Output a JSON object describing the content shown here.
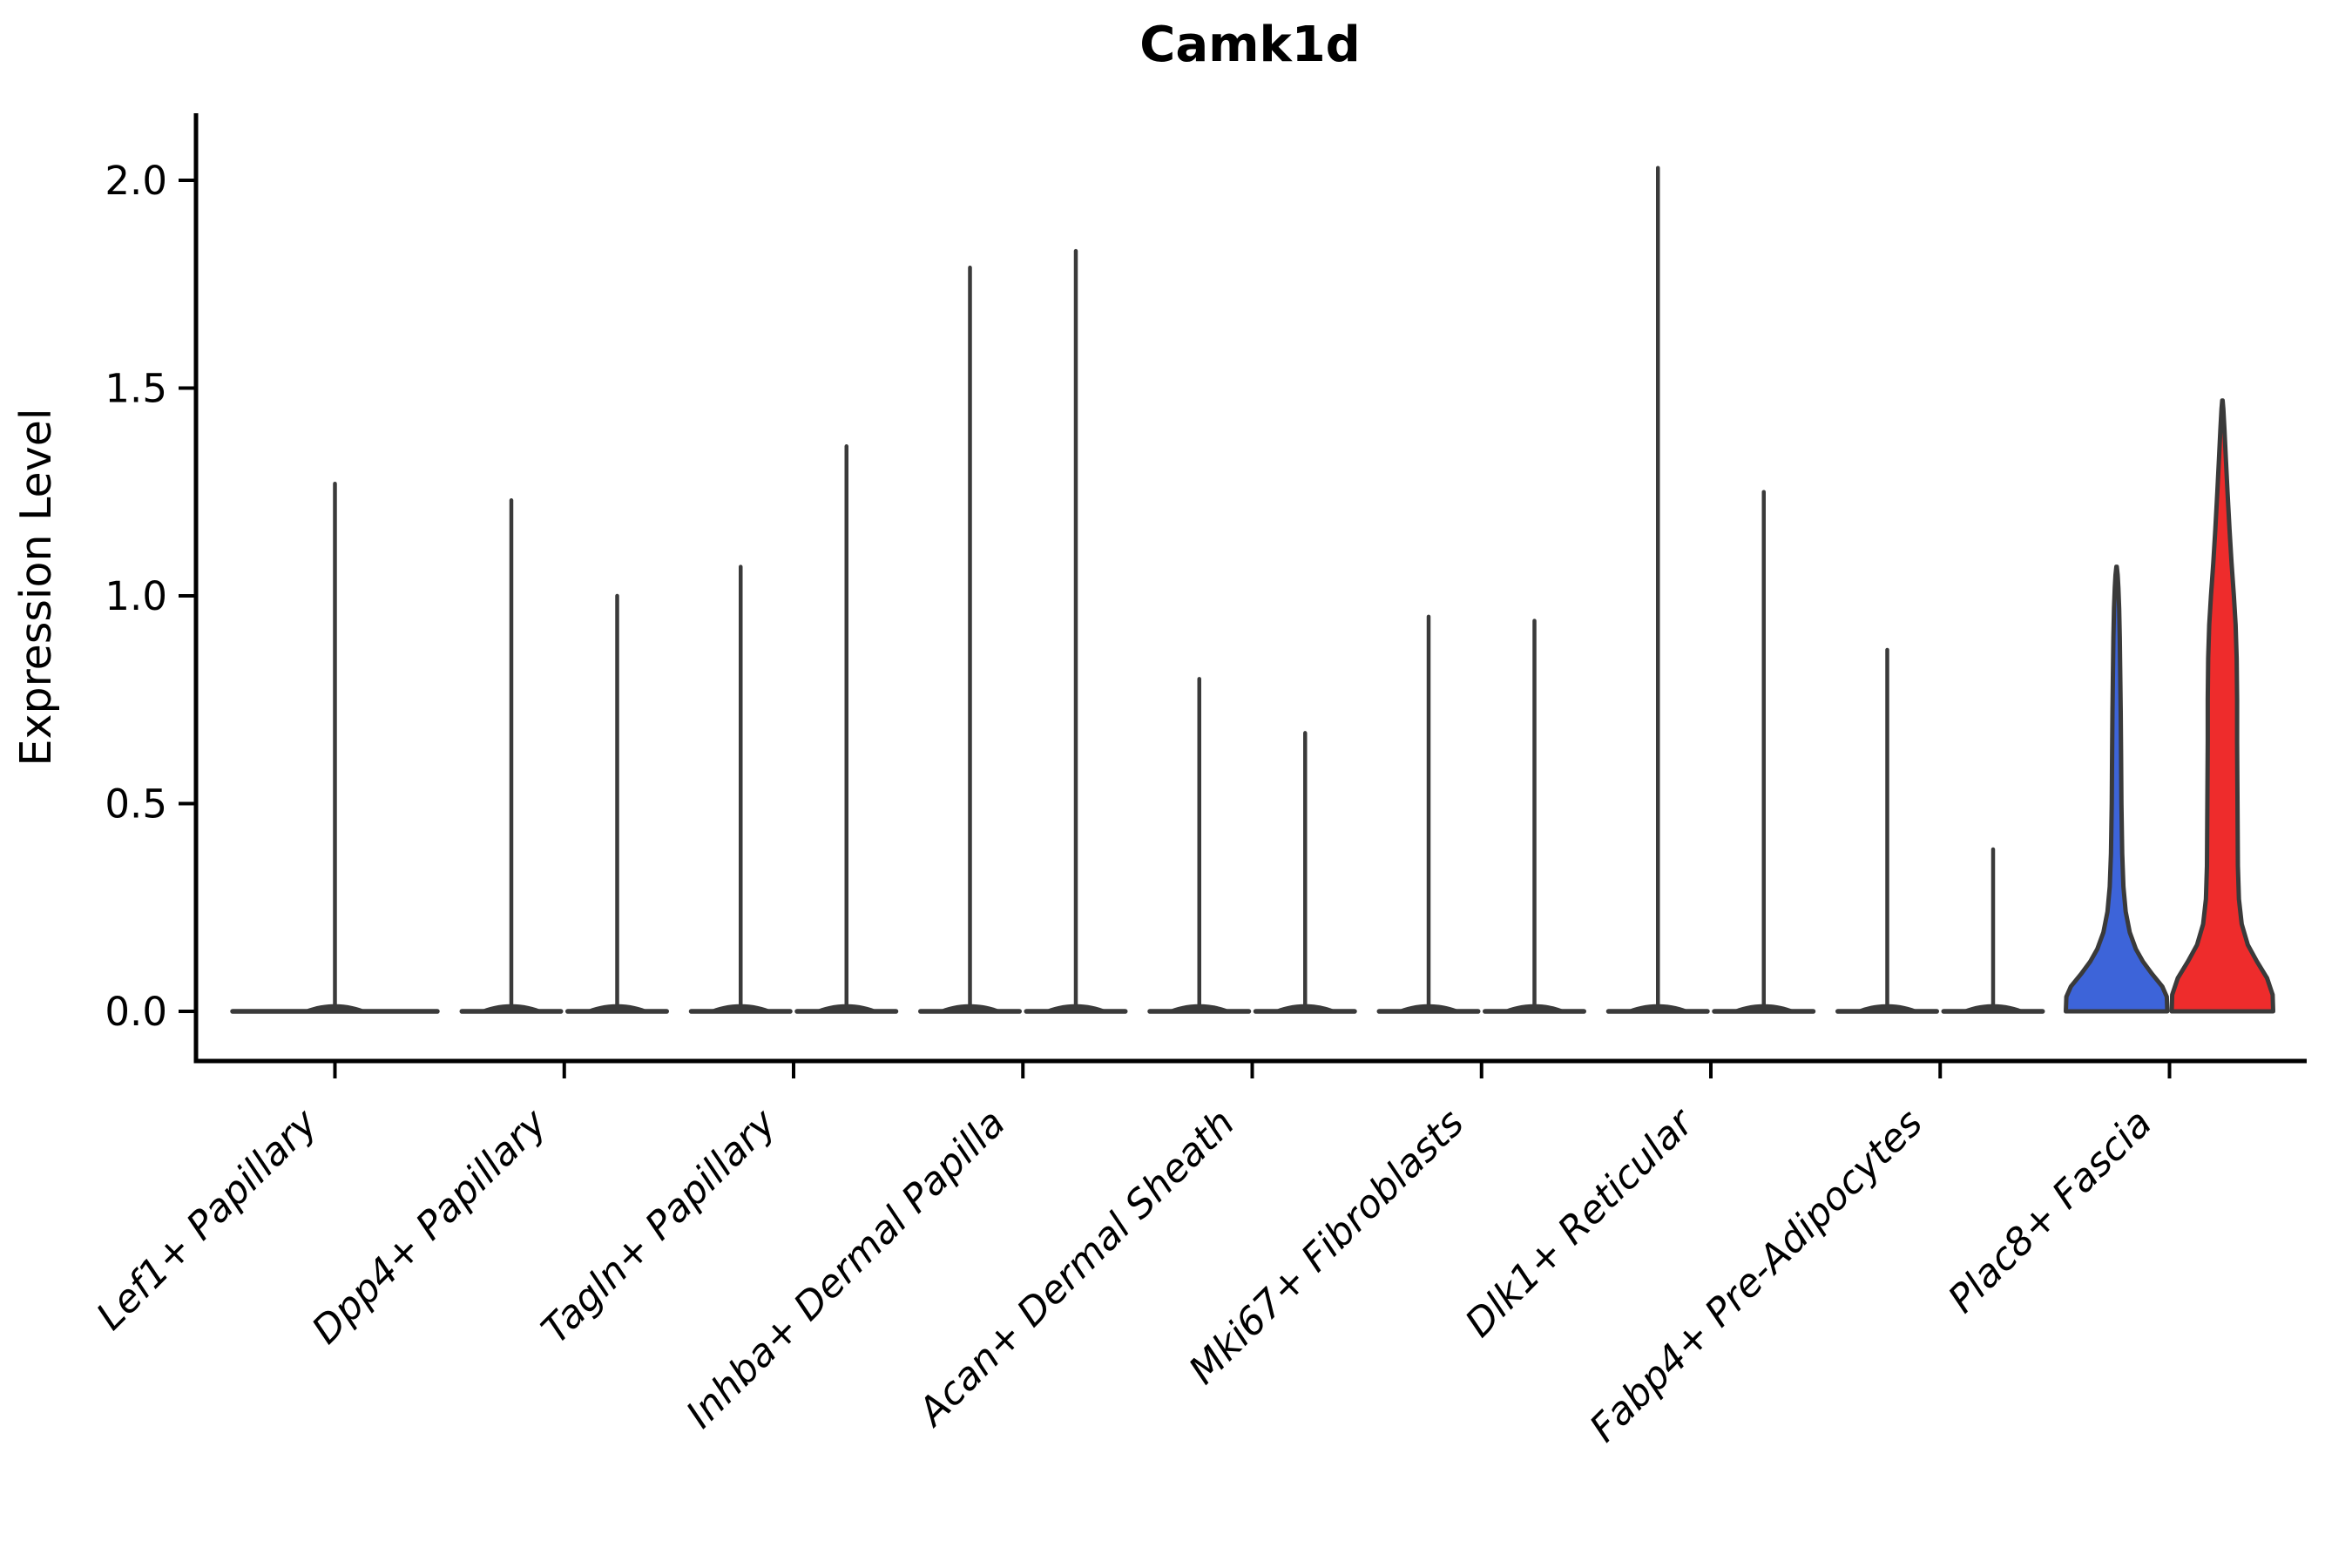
{
  "title": "Camk1d",
  "y_axis": {
    "label": "Expression Level",
    "tick_labels": [
      "0.0",
      "0.5",
      "1.0",
      "1.5",
      "2.0"
    ]
  },
  "colors": {
    "axis": "#000000",
    "violin_outline": "#3a3a3a",
    "split_left_fill": "#3d64d9",
    "split_right_fill": "#ee2c2c"
  },
  "chart_data": {
    "type": "violin",
    "title": "Camk1d",
    "xlabel": "",
    "ylabel": "Expression Level",
    "yticks": [
      0.0,
      0.5,
      1.0,
      1.5,
      2.0
    ],
    "ylim": [
      -0.07,
      2.16
    ],
    "grid": false,
    "legend": "none",
    "categories": [
      "Lef1+ Papillary",
      "Dpp4+ Papillary",
      "Tagln+ Papillary",
      "Inhba+ Dermal Papilla",
      "Acan+ Dermal Sheath",
      "Mki67+ Fibroblasts",
      "Dlk1+ Reticular",
      "Fabp4+ Pre-Adipocytes",
      "Plac8+ Fascia"
    ],
    "groups": [
      {
        "category": "Lef1+ Papillary",
        "violins": [
          {
            "split": "full",
            "max_expression": 1.27,
            "render": "spike",
            "fill": "none"
          }
        ]
      },
      {
        "category": "Dpp4+ Papillary",
        "violins": [
          {
            "split": "left",
            "max_expression": 1.23,
            "render": "spike",
            "fill": "none"
          },
          {
            "split": "right",
            "max_expression": 1.0,
            "render": "spike",
            "fill": "none"
          }
        ]
      },
      {
        "category": "Tagln+ Papillary",
        "violins": [
          {
            "split": "left",
            "max_expression": 1.07,
            "render": "spike",
            "fill": "none"
          },
          {
            "split": "right",
            "max_expression": 1.36,
            "render": "spike",
            "fill": "none"
          }
        ]
      },
      {
        "category": "Inhba+ Dermal Papilla",
        "violins": [
          {
            "split": "left",
            "max_expression": 1.79,
            "render": "spike",
            "fill": "none"
          },
          {
            "split": "right",
            "max_expression": 1.83,
            "render": "spike",
            "fill": "none"
          }
        ]
      },
      {
        "category": "Acan+ Dermal Sheath",
        "violins": [
          {
            "split": "left",
            "max_expression": 0.8,
            "render": "spike",
            "fill": "none"
          },
          {
            "split": "right",
            "max_expression": 0.67,
            "render": "spike",
            "fill": "none"
          }
        ]
      },
      {
        "category": "Mki67+ Fibroblasts",
        "violins": [
          {
            "split": "left",
            "max_expression": 0.95,
            "render": "spike",
            "fill": "none"
          },
          {
            "split": "right",
            "max_expression": 0.94,
            "render": "spike",
            "fill": "none"
          }
        ]
      },
      {
        "category": "Dlk1+ Reticular",
        "violins": [
          {
            "split": "left",
            "max_expression": 2.03,
            "render": "spike",
            "fill": "none"
          },
          {
            "split": "right",
            "max_expression": 1.25,
            "render": "spike",
            "fill": "none"
          }
        ]
      },
      {
        "category": "Fabp4+ Pre-Adipocytes",
        "violins": [
          {
            "split": "left",
            "max_expression": 0.87,
            "render": "spike",
            "fill": "none"
          },
          {
            "split": "right",
            "max_expression": 0.39,
            "render": "spike",
            "fill": "none"
          }
        ]
      },
      {
        "category": "Plac8+ Fascia",
        "violins": [
          {
            "split": "left",
            "max_expression": 1.07,
            "render": "filled",
            "fill": "#3d64d9",
            "width_profile": [
              [
                0.0,
                1.0
              ],
              [
                0.035,
                0.99
              ],
              [
                0.06,
                0.9
              ],
              [
                0.09,
                0.7
              ],
              [
                0.12,
                0.52
              ],
              [
                0.15,
                0.38
              ],
              [
                0.19,
                0.26
              ],
              [
                0.24,
                0.18
              ],
              [
                0.3,
                0.135
              ],
              [
                0.38,
                0.11
              ],
              [
                0.5,
                0.095
              ],
              [
                0.62,
                0.088
              ],
              [
                0.72,
                0.082
              ],
              [
                0.82,
                0.072
              ],
              [
                0.9,
                0.062
              ],
              [
                0.97,
                0.05
              ],
              [
                1.02,
                0.036
              ],
              [
                1.05,
                0.022
              ],
              [
                1.07,
                0.004
              ]
            ]
          },
          {
            "split": "right",
            "max_expression": 1.47,
            "render": "filled",
            "fill": "#ee2c2c",
            "width_profile": [
              [
                0.0,
                1.0
              ],
              [
                0.04,
                0.99
              ],
              [
                0.08,
                0.88
              ],
              [
                0.12,
                0.68
              ],
              [
                0.16,
                0.5
              ],
              [
                0.21,
                0.38
              ],
              [
                0.27,
                0.325
              ],
              [
                0.35,
                0.305
              ],
              [
                0.45,
                0.3
              ],
              [
                0.55,
                0.295
              ],
              [
                0.65,
                0.29
              ],
              [
                0.75,
                0.29
              ],
              [
                0.85,
                0.28
              ],
              [
                0.93,
                0.26
              ],
              [
                1.0,
                0.225
              ],
              [
                1.08,
                0.18
              ],
              [
                1.16,
                0.14
              ],
              [
                1.25,
                0.1
              ],
              [
                1.33,
                0.068
              ],
              [
                1.4,
                0.04
              ],
              [
                1.45,
                0.018
              ],
              [
                1.47,
                0.004
              ]
            ]
          }
        ]
      }
    ]
  }
}
